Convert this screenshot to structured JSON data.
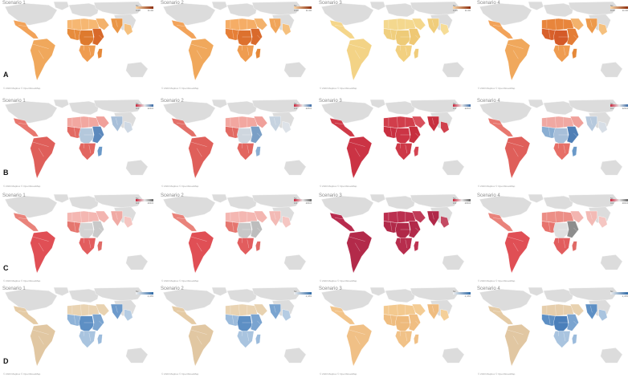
{
  "credit": "© 2023 Mapbox © OpenStreetMap",
  "legend_title": "Sc",
  "rows": [
    {
      "label": "A",
      "legend_min": "0.00",
      "legend_max": "11.00",
      "legend_colors": [
        "#fbd7a8",
        "#8b2d0c"
      ],
      "panels": [
        {
          "title": "Scenario 1",
          "fills": {
            "am": "#f2a35a",
            "sa": "#f0a85c",
            "naf": "#f6b772",
            "waf": "#e78c3c",
            "caf": "#de7a2e",
            "eaf": "#d8692a",
            "saf": "#ef9c50",
            "mad": "#e58838",
            "ara": "#f3b26c",
            "ind": "#ea9646",
            "sea": "#f5c07e"
          }
        },
        {
          "title": "Scenario 2",
          "fills": {
            "am": "#f2a35a",
            "sa": "#f0a85c",
            "naf": "#f5ad66",
            "waf": "#e67f37",
            "caf": "#dd712e",
            "eaf": "#d96a2c",
            "saf": "#ef9c50",
            "mad": "#e58838",
            "ara": "#f3b26c",
            "ind": "#f0a55a",
            "sea": "#f5c07e"
          }
        },
        {
          "title": "Scenario 3",
          "fills": {
            "am": "#f5d68a",
            "sa": "#f3d386",
            "naf": "#f4d88e",
            "waf": "#f0cf7e",
            "caf": "#eecb78",
            "eaf": "#efc874",
            "saf": "#f2d080",
            "mad": "#f0cc7a",
            "ara": "#f4d78c",
            "ind": "#f0cd7c",
            "sea": "#f6dc96"
          }
        },
        {
          "title": "Scenario 4",
          "fills": {
            "am": "#f2a35a",
            "sa": "#f0a85c",
            "naf": "#e8853c",
            "waf": "#d8602a",
            "caf": "#d45a28",
            "eaf": "#e47d36",
            "saf": "#ef9c50",
            "mad": "#e58838",
            "ara": "#f3b26c",
            "ind": "#ed9a4c",
            "sea": "#f5c07e"
          }
        }
      ]
    },
    {
      "label": "B",
      "legend_min": "0.0",
      "legend_max": "120.0",
      "legend_colors": [
        "#c9243b",
        "#e9e9e9",
        "#3a6aa5"
      ],
      "panels": [
        {
          "title": "Scenario 1",
          "fills": {
            "am": "#e8776f",
            "sa": "#df5f5a",
            "naf": "#f2a7a0",
            "waf": "#e26a63",
            "caf": "#b4c8dc",
            "eaf": "#5c89bd",
            "saf": "#e26660",
            "mad": "#6a99c8",
            "ara": "#f0a09a",
            "ind": "#a7bfd9",
            "sea": "#cfd9e4"
          }
        },
        {
          "title": "Scenario 2",
          "fills": {
            "am": "#e37069",
            "sa": "#df5f5a",
            "naf": "#f2a7a0",
            "waf": "#e26a63",
            "caf": "#cfd7df",
            "eaf": "#7a9fc6",
            "saf": "#e26660",
            "mad": "#8aaed2",
            "ara": "#f0a09a",
            "ind": "#c6d3e0",
            "sea": "#dde2e8"
          }
        },
        {
          "title": "Scenario 3",
          "fills": {
            "am": "#cf3a48",
            "sa": "#cb3344",
            "naf": "#d13e4b",
            "waf": "#c92f40",
            "caf": "#cc3445",
            "eaf": "#c7303f",
            "saf": "#cd3847",
            "mad": "#d44452",
            "ara": "#d8505c",
            "ind": "#c7303f",
            "sea": "#d0414d"
          }
        },
        {
          "title": "Scenario 4",
          "fills": {
            "am": "#e8776f",
            "sa": "#df5f5a",
            "naf": "#f0a8a2",
            "waf": "#8aaed2",
            "caf": "#a7bfd9",
            "eaf": "#4f7fb6",
            "saf": "#e66f67",
            "mad": "#6a99c8",
            "ara": "#f0a09a",
            "ind": "#b6c9dd",
            "sea": "#d7dee6"
          }
        }
      ]
    },
    {
      "label": "C",
      "legend_min": "0.0",
      "legend_max": "100.0",
      "legend_colors": [
        "#c9243b",
        "#e9e9e9",
        "#666666"
      ],
      "panels": [
        {
          "title": "Scenario 1",
          "fills": {
            "am": "#e9837b",
            "sa": "#e04f55",
            "naf": "#f4b7b2",
            "waf": "#e5766f",
            "caf": "#d4d4d4",
            "eaf": "#c9c9c9",
            "saf": "#e25d5e",
            "mad": "#e06a66",
            "ara": "#f3b5b0",
            "ind": "#f0aaa4",
            "sea": "#f5c6c2"
          }
        },
        {
          "title": "Scenario 2",
          "fills": {
            "am": "#e9837b",
            "sa": "#e04f55",
            "naf": "#f4b7b2",
            "waf": "#e5766f",
            "caf": "#c8c8c8",
            "eaf": "#bdbdbd",
            "saf": "#e25d5e",
            "mad": "#e06a66",
            "ara": "#f3b5b0",
            "ind": "#f3bab5",
            "sea": "#f5c6c2"
          }
        },
        {
          "title": "Scenario 3",
          "fills": {
            "am": "#b82c4e",
            "sa": "#b32a4a",
            "naf": "#bb2f4f",
            "waf": "#b12949",
            "caf": "#b02848",
            "eaf": "#b22a4a",
            "saf": "#b72d4d",
            "mad": "#bd3352",
            "ara": "#c03b58",
            "ind": "#b02848",
            "sea": "#c44a63"
          }
        },
        {
          "title": "Scenario 4",
          "fills": {
            "am": "#e9837b",
            "sa": "#e04f55",
            "naf": "#ec8e86",
            "waf": "#e7736d",
            "caf": "#dfdfdf",
            "eaf": "#8d8d8d",
            "saf": "#e25d5e",
            "mad": "#e06a66",
            "ara": "#f3b5b0",
            "ind": "#f3bab5",
            "sea": "#f5c6c2"
          }
        }
      ]
    },
    {
      "label": "D",
      "legend_min": "",
      "legend_max": "1,470",
      "legend_colors": [
        "#f2f2f2",
        "#2f6aa6"
      ],
      "panels": [
        {
          "title": "Scenario 1",
          "fills": {
            "am": "#e5cba5",
            "sa": "#e1c7a2",
            "naf": "#e9d3b2",
            "waf": "#8fb3d8",
            "caf": "#5d8fc4",
            "eaf": "#7aa4d0",
            "saf": "#a9c4df",
            "mad": "#9bbbdc",
            "ara": "#e8d2b0",
            "ind": "#6d9acb",
            "sea": "#b5cce3"
          }
        },
        {
          "title": "Scenario 2",
          "fills": {
            "am": "#e5cba5",
            "sa": "#e1c7a2",
            "naf": "#e9d3b2",
            "waf": "#9bbbdc",
            "caf": "#5d8fc4",
            "eaf": "#7aa4d0",
            "saf": "#a9c4df",
            "mad": "#9bbbdc",
            "ara": "#e8d2b0",
            "ind": "#7aa4d0",
            "sea": "#b5cce3"
          }
        },
        {
          "title": "Scenario 3",
          "fills": {
            "am": "#f2c48a",
            "sa": "#f0c086",
            "naf": "#f3c98f",
            "waf": "#efbd80",
            "caf": "#eeba7c",
            "eaf": "#f0be82",
            "saf": "#f1c288",
            "mad": "#f0c086",
            "ara": "#f4cc94",
            "ind": "#efbc80",
            "sea": "#f4cf98"
          }
        },
        {
          "title": "Scenario 4",
          "fills": {
            "am": "#e5cba5",
            "sa": "#e1c7a2",
            "naf": "#e6ceac",
            "waf": "#5d8fc4",
            "caf": "#4a7fba",
            "eaf": "#7aa4d0",
            "saf": "#a9c4df",
            "mad": "#9bbbdc",
            "ara": "#e8d2b0",
            "ind": "#5d8fc4",
            "sea": "#a9c4df"
          }
        }
      ]
    }
  ]
}
